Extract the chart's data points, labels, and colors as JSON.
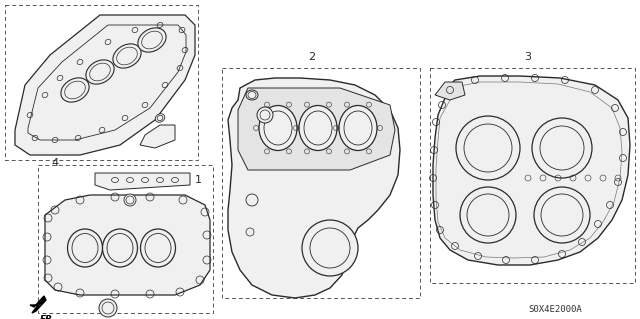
{
  "bg_color": "#ffffff",
  "lc": "#2a2a2a",
  "dc": "#444444",
  "fc": "#f0f0f0",
  "fc2": "#e4e4e4",
  "part_code": "S0X4E2000A",
  "figsize": [
    6.4,
    3.19
  ],
  "dpi": 100
}
